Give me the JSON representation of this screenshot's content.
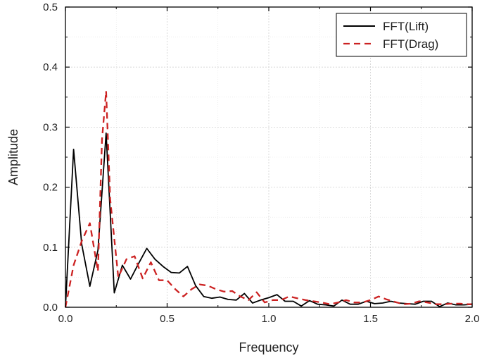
{
  "chart_data": {
    "type": "line",
    "title": "",
    "xlabel": "Frequency",
    "ylabel": "Amplitude",
    "xlim": [
      0,
      2.0
    ],
    "ylim": [
      0,
      0.5
    ],
    "xticks": [
      0,
      0.5,
      1.0,
      1.5,
      2.0
    ],
    "xtick_labels": [
      "0.0",
      "0.5",
      "1.0",
      "1.5",
      "2.0"
    ],
    "yticks": [
      0,
      0.1,
      0.2,
      0.3,
      0.4,
      0.5
    ],
    "ytick_labels": [
      "0.0",
      "0.1",
      "0.2",
      "0.3",
      "0.4",
      "0.5"
    ],
    "grid": true,
    "legend_position": "top-right",
    "series": [
      {
        "name": "FFT(Lift)",
        "color": "#000000",
        "style": "solid",
        "x": [
          0.0,
          0.04,
          0.08,
          0.12,
          0.16,
          0.2,
          0.24,
          0.28,
          0.32,
          0.36,
          0.4,
          0.44,
          0.48,
          0.52,
          0.56,
          0.6,
          0.64,
          0.68,
          0.72,
          0.76,
          0.8,
          0.84,
          0.88,
          0.92,
          0.96,
          1.0,
          1.04,
          1.08,
          1.12,
          1.16,
          1.2,
          1.24,
          1.28,
          1.32,
          1.36,
          1.4,
          1.44,
          1.48,
          1.52,
          1.56,
          1.6,
          1.64,
          1.68,
          1.72,
          1.76,
          1.8,
          1.84,
          1.88,
          1.92,
          1.96,
          2.0
        ],
        "y": [
          0.0,
          0.263,
          0.105,
          0.035,
          0.095,
          0.29,
          0.024,
          0.07,
          0.047,
          0.073,
          0.098,
          0.08,
          0.068,
          0.058,
          0.057,
          0.068,
          0.036,
          0.018,
          0.015,
          0.017,
          0.013,
          0.012,
          0.023,
          0.007,
          0.012,
          0.016,
          0.021,
          0.01,
          0.01,
          0.002,
          0.011,
          0.005,
          0.004,
          0.002,
          0.012,
          0.005,
          0.005,
          0.01,
          0.006,
          0.007,
          0.01,
          0.007,
          0.006,
          0.005,
          0.01,
          0.01,
          0.001,
          0.007,
          0.004,
          0.004,
          0.005
        ]
      },
      {
        "name": "FFT(Drag)",
        "color": "#cc2222",
        "style": "dashed",
        "x": [
          0.0,
          0.04,
          0.08,
          0.12,
          0.16,
          0.18,
          0.2,
          0.22,
          0.26,
          0.3,
          0.34,
          0.38,
          0.42,
          0.46,
          0.5,
          0.54,
          0.58,
          0.62,
          0.66,
          0.7,
          0.74,
          0.78,
          0.82,
          0.86,
          0.9,
          0.94,
          0.98,
          1.02,
          1.06,
          1.1,
          1.14,
          1.18,
          1.22,
          1.26,
          1.3,
          1.34,
          1.38,
          1.42,
          1.46,
          1.5,
          1.54,
          1.58,
          1.62,
          1.66,
          1.7,
          1.74,
          1.78,
          1.82,
          1.86,
          1.9,
          1.94,
          1.98,
          2.0
        ],
        "y": [
          0.0,
          0.07,
          0.11,
          0.14,
          0.06,
          0.28,
          0.36,
          0.18,
          0.05,
          0.08,
          0.085,
          0.048,
          0.075,
          0.045,
          0.045,
          0.03,
          0.018,
          0.03,
          0.038,
          0.036,
          0.03,
          0.026,
          0.027,
          0.018,
          0.012,
          0.025,
          0.008,
          0.012,
          0.012,
          0.018,
          0.015,
          0.012,
          0.01,
          0.008,
          0.005,
          0.008,
          0.012,
          0.008,
          0.008,
          0.012,
          0.018,
          0.013,
          0.009,
          0.005,
          0.006,
          0.01,
          0.008,
          0.005,
          0.005,
          0.006,
          0.006,
          0.005,
          0.005
        ]
      }
    ]
  }
}
